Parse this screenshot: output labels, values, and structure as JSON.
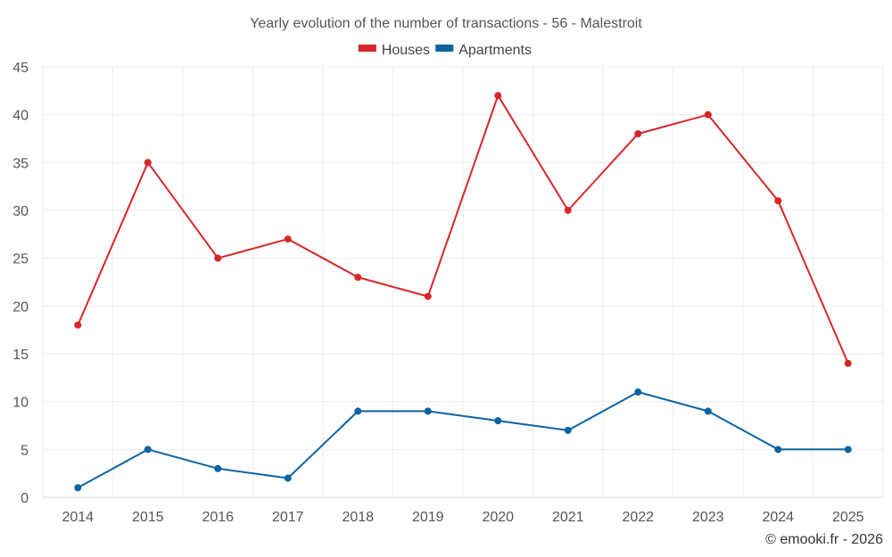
{
  "chart_data": {
    "type": "line",
    "title": "Yearly evolution of the number of transactions - 56 - Malestroit",
    "categories": [
      "2014",
      "2015",
      "2016",
      "2017",
      "2018",
      "2019",
      "2020",
      "2021",
      "2022",
      "2023",
      "2024",
      "2025"
    ],
    "series": [
      {
        "name": "Houses",
        "color": "#d62728",
        "values": [
          18,
          35,
          25,
          27,
          23,
          21,
          42,
          30,
          38,
          40,
          31,
          14
        ]
      },
      {
        "name": "Apartments",
        "color": "#0b64a0",
        "values": [
          1,
          5,
          3,
          2,
          9,
          9,
          8,
          7,
          11,
          9,
          5,
          5
        ]
      }
    ],
    "ylim": [
      0,
      45
    ],
    "yticks": [
      "0",
      "5",
      "10",
      "15",
      "20",
      "25",
      "30",
      "35",
      "40",
      "45"
    ],
    "grid": true,
    "legend_position": "top-center",
    "xlabel": "",
    "ylabel": ""
  },
  "credit": "© emooki.fr - 2026"
}
